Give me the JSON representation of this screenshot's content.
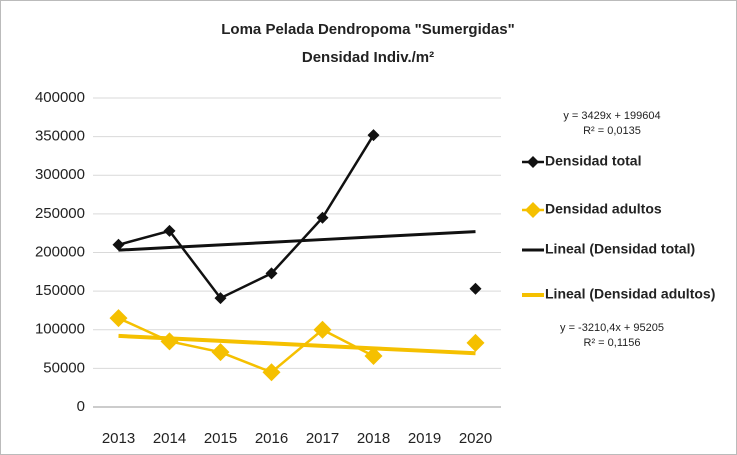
{
  "chart_data": {
    "type": "line",
    "title": [
      "Loma Pelada Dendropoma \"Sumergidas\"",
      "Densidad Indiv./m²"
    ],
    "categories": [
      "2013",
      "2014",
      "2015",
      "2016",
      "2017",
      "2018",
      "2019",
      "2020"
    ],
    "series": [
      {
        "name": "Densidad total",
        "color": "#111111",
        "marker": "diamond",
        "values": [
          210000,
          228000,
          141000,
          173000,
          245000,
          352000,
          null,
          153000
        ]
      },
      {
        "name": "Densidad adultos",
        "color": "#f5c000",
        "marker": "diamond",
        "values": [
          115000,
          85000,
          71000,
          45000,
          100000,
          66000,
          null,
          83000
        ]
      },
      {
        "name": "Lineal (Densidad total)",
        "color": "#111111",
        "marker": null,
        "values": [
          203033,
          206462,
          209891,
          213320,
          216749,
          220178,
          223607,
          227036
        ]
      },
      {
        "name": "Lineal (Densidad adultos)",
        "color": "#f5c000",
        "marker": null,
        "values": [
          91994.6,
          88784.2,
          85573.8,
          82363.4,
          79153,
          75942.6,
          72732.2,
          69521.8
        ]
      }
    ],
    "annotations": [
      "y = 3429x + 199604",
      "R² = 0,0135",
      "y = -3210,4x + 95205",
      "R² = 0,1156"
    ],
    "ylim": [
      0,
      400000
    ],
    "yticks": [
      0,
      50000,
      100000,
      150000,
      200000,
      250000,
      300000,
      350000,
      400000
    ],
    "grid": true,
    "legend": "right"
  }
}
